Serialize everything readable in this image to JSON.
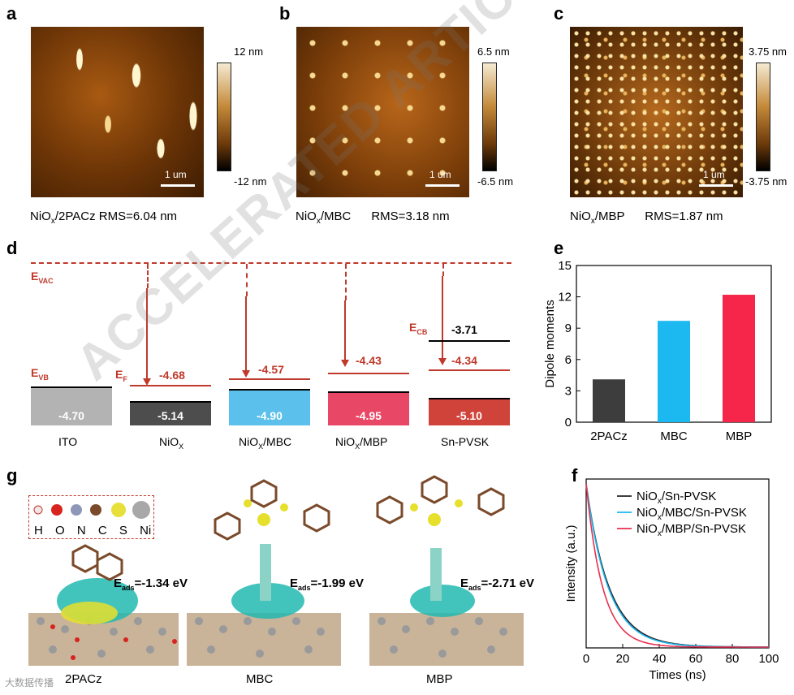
{
  "panels": {
    "a": "a",
    "b": "b",
    "c": "c",
    "d": "d",
    "e": "e",
    "f": "f",
    "g": "g"
  },
  "afm": [
    {
      "max": "12 nm",
      "min": "-12 nm",
      "scale": "1 um",
      "caption_pre": "NiO",
      "caption_sub": "x",
      "caption_post": "/2PACz RMS=6.04 nm"
    },
    {
      "max": "6.5 nm",
      "min": "-6.5 nm",
      "scale": "1 um",
      "caption_pre": "NiO",
      "caption_sub": "x",
      "caption_post": "/MBC      RMS=3.18 nm"
    },
    {
      "max": "3.75 nm",
      "min": "-3.75 nm",
      "scale": "1 um",
      "caption_pre": "NiO",
      "caption_sub": "x",
      "caption_post": "/MBP      RMS=1.87 nm"
    }
  ],
  "energy": {
    "evac_main": "E",
    "evac_sub": "VAC",
    "evb_main": "E",
    "evb_sub": "VB",
    "ef_main": "E",
    "ef_sub": "F",
    "ecb_main": "E",
    "ecb_sub": "CB",
    "materials": [
      {
        "name": "ITO",
        "sub": "",
        "post": "",
        "vb": "-4.70",
        "ef": ""
      },
      {
        "name": "NiO",
        "sub": "X",
        "post": "",
        "vb": "-5.14",
        "ef": "-4.68"
      },
      {
        "name": "NiO",
        "sub": "X",
        "post": "/MBC",
        "vb": "-4.90",
        "ef": "-4.57"
      },
      {
        "name": "NiO",
        "sub": "X",
        "post": "/MBP",
        "vb": "-4.95",
        "ef": "-4.43"
      },
      {
        "name": "Sn-PVSK",
        "sub": "",
        "post": "",
        "vb": "-5.10",
        "ef": "-4.34",
        "cb": "-3.71"
      }
    ]
  },
  "colors": {
    "red": "#c0392b",
    "ito": "#b3b3b3",
    "nio": "#4d4d4d",
    "mbc": "#5bc0eb",
    "mbp": "#e84866",
    "pvsk": "#d0433a",
    "bar_2pacz": "#3d3d3d",
    "bar_mbc": "#1cb8f0",
    "bar_mbp": "#f5264a"
  },
  "chart_data": [
    {
      "type": "bar",
      "title": "",
      "categories": [
        "2PACz",
        "MBC",
        "MBP"
      ],
      "values": [
        4.1,
        9.7,
        12.2
      ],
      "xlabel": "",
      "ylabel": "Dipole moments",
      "ylim": [
        0,
        15
      ],
      "yticks": [
        "0",
        "3",
        "6",
        "9",
        "12",
        "15"
      ]
    },
    {
      "type": "line",
      "title": "",
      "xlabel": "Times (ns)",
      "ylabel": "Intensity (a.u.)",
      "xlim": [
        0,
        100
      ],
      "xticks": [
        "0",
        "20",
        "40",
        "60",
        "80",
        "100"
      ],
      "series": [
        {
          "name_pre": "NiO",
          "name_sub": "x",
          "name_post": "/Sn-PVSK",
          "tau": 12.5,
          "color": "#222222"
        },
        {
          "name_pre": "NiO",
          "name_sub": "x",
          "name_post": "/MBC/Sn-PVSK",
          "tau": 12.0,
          "color": "#1cb8f0"
        },
        {
          "name_pre": "NiO",
          "name_sub": "x",
          "name_post": "/MBP/Sn-PVSK",
          "tau": 9.0,
          "color": "#e8304f"
        }
      ]
    }
  ],
  "structures": {
    "legend": [
      "H",
      "O",
      "N",
      "C",
      "S",
      "Ni"
    ],
    "items": [
      {
        "label": "2PACz",
        "eads_value": "=-1.34 eV"
      },
      {
        "label": "MBC",
        "eads_value": "=-1.99 eV"
      },
      {
        "label": "MBP",
        "eads_value": "=-2.71 eV"
      }
    ],
    "eads_main": "E",
    "eads_sub": "ads"
  },
  "watermark": "ACCELERATED ARTICLE PREVIEW",
  "source_mark": "大数据传播"
}
